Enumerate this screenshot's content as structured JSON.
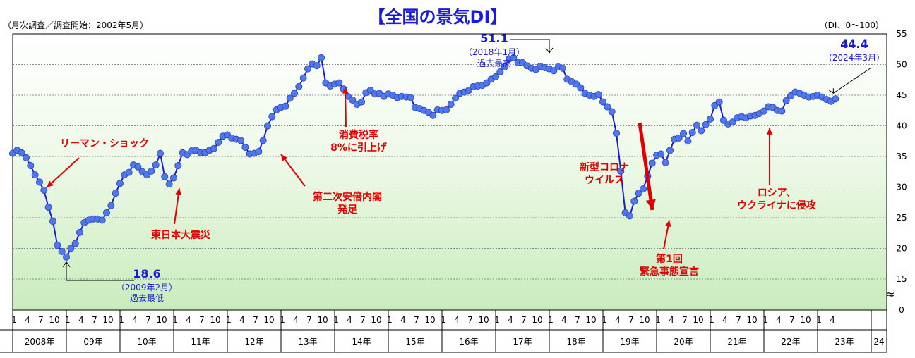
{
  "chart_data": {
    "type": "line",
    "title": "【全国の景気DI】",
    "subtitle": "（月次調査／調査開始：2002年5月）",
    "unit_label": "（DI、0～100）",
    "y_ticks": [
      0,
      15,
      20,
      25,
      30,
      35,
      40,
      45,
      50,
      55
    ],
    "ylim": [
      0,
      55
    ],
    "grid": true,
    "axis_break_symbol": "≈",
    "x_start": "2008-01",
    "month_tick_labels": [
      "1",
      "4",
      "7",
      "10"
    ],
    "years": [
      {
        "label": "2008年",
        "start": "2008-01"
      },
      {
        "label": "09年",
        "start": "2009-01"
      },
      {
        "label": "10年",
        "start": "2010-01"
      },
      {
        "label": "11年",
        "start": "2011-01"
      },
      {
        "label": "12年",
        "start": "2012-01"
      },
      {
        "label": "13年",
        "start": "2013-01"
      },
      {
        "label": "14年",
        "start": "2014-01"
      },
      {
        "label": "15年",
        "start": "2015-01"
      },
      {
        "label": "16年",
        "start": "2016-01"
      },
      {
        "label": "17年",
        "start": "2017-01"
      },
      {
        "label": "18年",
        "start": "2018-01"
      },
      {
        "label": "19年",
        "start": "2019-01"
      },
      {
        "label": "20年",
        "start": "2020-01"
      },
      {
        "label": "21年",
        "start": "2021-01"
      },
      {
        "label": "22年",
        "start": "2022-01"
      },
      {
        "label": "23年",
        "start": "2023-01"
      },
      {
        "label": "24",
        "start": "2024-01"
      }
    ],
    "series": [
      {
        "color": "#1a1adb",
        "marker_color": "#4f78ee",
        "values": [
          35.5,
          36.0,
          35.6,
          34.8,
          33.5,
          32.0,
          30.8,
          29.5,
          26.7,
          24.4,
          20.5,
          19.5,
          18.6,
          20.0,
          20.8,
          22.6,
          24.2,
          24.6,
          24.8,
          24.8,
          24.6,
          25.8,
          27.0,
          29.0,
          30.6,
          32.0,
          32.4,
          33.6,
          33.3,
          32.5,
          32.0,
          32.6,
          33.6,
          35.5,
          31.7,
          30.5,
          31.5,
          33.5,
          35.6,
          35.3,
          35.9,
          36.0,
          35.6,
          35.6,
          36.0,
          36.3,
          37.3,
          38.3,
          38.5,
          38.0,
          37.8,
          37.6,
          36.5,
          35.4,
          35.5,
          35.8,
          37.6,
          40.0,
          41.5,
          42.6,
          43.0,
          43.2,
          44.5,
          45.3,
          46.4,
          47.8,
          49.3,
          50.1,
          49.8,
          51.1,
          47.0,
          46.5,
          46.8,
          47.0,
          46.0,
          44.8,
          44.2,
          43.5,
          43.9,
          45.4,
          45.8,
          45.2,
          45.3,
          44.8,
          45.2,
          45.0,
          44.6,
          44.8,
          44.7,
          44.6,
          43.0,
          42.8,
          42.5,
          42.2,
          41.7,
          42.6,
          42.5,
          42.6,
          43.5,
          44.5,
          45.3,
          45.5,
          45.8,
          46.4,
          46.5,
          46.6,
          47.0,
          47.6,
          48.0,
          48.8,
          49.6,
          50.9,
          51.1,
          50.3,
          50.3,
          49.8,
          49.4,
          49.2,
          49.7,
          49.5,
          49.3,
          49.0,
          49.6,
          49.4,
          47.6,
          47.2,
          46.8,
          46.2,
          45.3,
          45.0,
          44.8,
          45.1,
          43.9,
          43.1,
          42.3,
          38.8,
          32.6,
          25.8,
          25.3,
          27.7,
          29.0,
          29.7,
          31.8,
          33.9,
          35.2,
          35.4,
          34.0,
          36.0,
          37.8,
          38.0,
          38.7,
          37.5,
          38.9,
          40.1,
          39.2,
          40.2,
          41.1,
          43.3,
          43.9,
          40.9,
          40.3,
          40.6,
          41.3,
          41.5,
          41.3,
          41.6,
          41.7,
          42.0,
          42.4,
          43.1,
          43.0,
          42.5,
          42.4,
          44.1,
          44.9,
          45.5,
          45.3,
          45.0,
          44.7,
          44.8,
          45.0,
          44.7,
          44.3,
          44.0,
          44.4
        ]
      }
    ],
    "annotations": [
      {
        "name": "low",
        "text": "18.6",
        "sub": "（2009年2月）",
        "sub2": "過去最低"
      },
      {
        "name": "high",
        "text": "51.1",
        "sub": "（2018年1月）",
        "sub2": "過去最高"
      },
      {
        "name": "latest",
        "text": "44.4",
        "sub": "（2024年3月）"
      }
    ],
    "event_labels": [
      {
        "lines": [
          "リーマン・ショック"
        ],
        "color": "#e00000"
      },
      {
        "lines": [
          "東日本大震災"
        ],
        "color": "#e00000"
      },
      {
        "lines": [
          "第二次安倍内閣",
          "発足"
        ],
        "color": "#e00000"
      },
      {
        "lines": [
          "消費税率",
          "8%に引上げ"
        ],
        "color": "#e00000"
      },
      {
        "lines": [
          "新型コロナ",
          "ウイルス"
        ],
        "color": "#e00000"
      },
      {
        "lines": [
          "第1回",
          "緊急事態宣言"
        ],
        "color": "#e00000"
      },
      {
        "lines": [
          "ロシア、",
          "ウクライナに侵攻"
        ],
        "color": "#e00000"
      }
    ]
  }
}
